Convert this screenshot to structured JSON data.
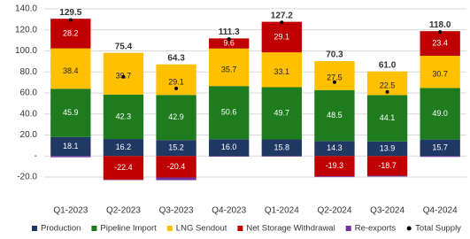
{
  "chart_data": {
    "type": "stacked-bar",
    "categories": [
      "Q1-2023",
      "Q2-2023",
      "Q3-2023",
      "Q4-2023",
      "Q1-2024",
      "Q2-2024",
      "Q3-2024",
      "Q4-2024"
    ],
    "series": [
      {
        "name": "Production",
        "color": "#1f3864",
        "values": [
          18.1,
          16.2,
          15.2,
          16.0,
          15.8,
          14.3,
          13.9,
          15.7
        ],
        "value_labels": [
          "18.1",
          "16.2",
          "15.2",
          "16.0",
          "15.8",
          "14.3",
          "13.9",
          "15.7"
        ]
      },
      {
        "name": "Pipeline Import",
        "color": "#1e7b1e",
        "values": [
          45.9,
          42.3,
          42.9,
          50.6,
          49.7,
          48.5,
          44.1,
          49.0
        ],
        "value_labels": [
          "45.9",
          "42.3",
          "42.9",
          "50.6",
          "49.7",
          "48.5",
          "44.1",
          "49.0"
        ]
      },
      {
        "name": "LNG Sendout",
        "color": "#ffc000",
        "values": [
          38.4,
          39.7,
          29.1,
          35.7,
          33.1,
          27.5,
          22.5,
          30.7
        ],
        "value_labels": [
          "38.4",
          "39.7",
          "29.1",
          "35.7",
          "33.1",
          "27.5",
          "22.5",
          "30.7"
        ]
      },
      {
        "name": "Net Storage Withdrawal",
        "color": "#c00000",
        "values": [
          28.2,
          -22.4,
          -20.4,
          9.6,
          29.1,
          -19.3,
          -18.7,
          23.4
        ],
        "value_labels": [
          "28.2",
          "-22.4",
          "-20.4",
          "9.6",
          "29.1",
          "-19.3",
          "-18.7",
          "23.4"
        ]
      },
      {
        "name": "Re-exports",
        "color": "#7030a0",
        "values": [
          -1.1,
          -0.4,
          -2.5,
          -0.6,
          -0.5,
          -0.7,
          -0.8,
          -0.8
        ]
      },
      {
        "name": "Total Supply",
        "type": "dot",
        "color": "#000000",
        "values": [
          129.5,
          75.4,
          64.3,
          111.3,
          127.2,
          70.3,
          61.0,
          118.0
        ],
        "value_labels": [
          "129.5",
          "75.4",
          "64.3",
          "111.3",
          "127.2",
          "70.3",
          "61.0",
          "118.0"
        ]
      }
    ],
    "ylim": [
      -25,
      140
    ],
    "yticks": [
      {
        "value": 140,
        "label": "140.0"
      },
      {
        "value": 120,
        "label": "120.0"
      },
      {
        "value": 100,
        "label": "100.0"
      },
      {
        "value": 80,
        "label": "80.0"
      },
      {
        "value": 60,
        "label": "60.0"
      },
      {
        "value": 40,
        "label": "40.0"
      },
      {
        "value": 20,
        "label": "20.0"
      },
      {
        "value": 0,
        "label": "-"
      },
      {
        "value": -20,
        "label": "-20.0"
      }
    ],
    "grid": true
  }
}
